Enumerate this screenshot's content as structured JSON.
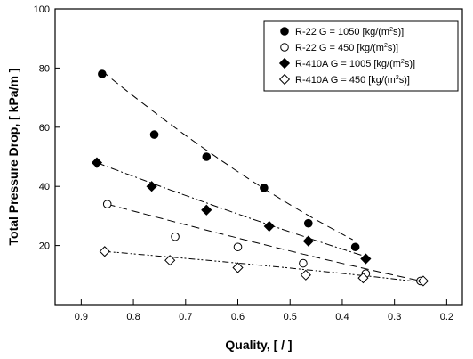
{
  "chart_data": {
    "type": "scatter",
    "x_reversed": true,
    "xlim": [
      0.95,
      0.17
    ],
    "ylim": [
      0,
      100
    ],
    "x_ticks": [
      "0.9",
      "0.8",
      "0.7",
      "0.6",
      "0.5",
      "0.4",
      "0.3",
      "0.2"
    ],
    "x_tick_values": [
      0.9,
      0.8,
      0.7,
      0.6,
      0.5,
      0.4,
      0.3,
      0.2
    ],
    "y_ticks": [
      "20",
      "40",
      "60",
      "80",
      "100"
    ],
    "y_tick_values": [
      20,
      40,
      60,
      80,
      100
    ],
    "xlabel": "Quality, [ / ]",
    "ylabel": "Total Pressure Drop,  [ kPa/m ]",
    "grid": false,
    "legend_position": "top-right",
    "series": [
      {
        "name": "R-22 G = 1050 [kg/(m",
        "name_sup": "2",
        "name_tail": "s)]",
        "marker": "circle-filled",
        "line_style": "dash",
        "x": [
          0.86,
          0.76,
          0.66,
          0.55,
          0.465,
          0.375
        ],
        "y": [
          78,
          57.5,
          50,
          39.5,
          27.5,
          19.5
        ],
        "fit_x": [
          0.86,
          0.38
        ],
        "fit_y": [
          79,
          22
        ]
      },
      {
        "name": "R-22 G = 450 [kg/(m",
        "name_sup": "2",
        "name_tail": "s)]",
        "marker": "circle-open",
        "line_style": "dash",
        "x": [
          0.85,
          0.72,
          0.6,
          0.475,
          0.355,
          0.25
        ],
        "y": [
          34,
          23,
          19.5,
          14,
          10.5,
          8
        ],
        "fit_x": [
          0.85,
          0.25
        ],
        "fit_y": [
          34,
          8
        ]
      },
      {
        "name": "R-410A G = 1005 [kg/(m",
        "name_sup": "2",
        "name_tail": "s)]",
        "marker": "diamond-filled",
        "line_style": "dashdot",
        "x": [
          0.87,
          0.765,
          0.66,
          0.54,
          0.465,
          0.355
        ],
        "y": [
          48,
          40,
          32,
          26.5,
          21.5,
          15.5
        ],
        "fit_x": [
          0.87,
          0.35
        ],
        "fit_y": [
          48,
          16
        ]
      },
      {
        "name": "R-410A G = 450 [kg/(m",
        "name_sup": "2",
        "name_tail": "s)]",
        "marker": "diamond-open",
        "line_style": "dashdotdot",
        "x": [
          0.855,
          0.73,
          0.6,
          0.47,
          0.36,
          0.245
        ],
        "y": [
          18,
          15,
          12.5,
          10,
          9,
          8
        ],
        "fit_x": [
          0.855,
          0.245
        ],
        "fit_y": [
          18,
          7.5
        ]
      }
    ]
  }
}
